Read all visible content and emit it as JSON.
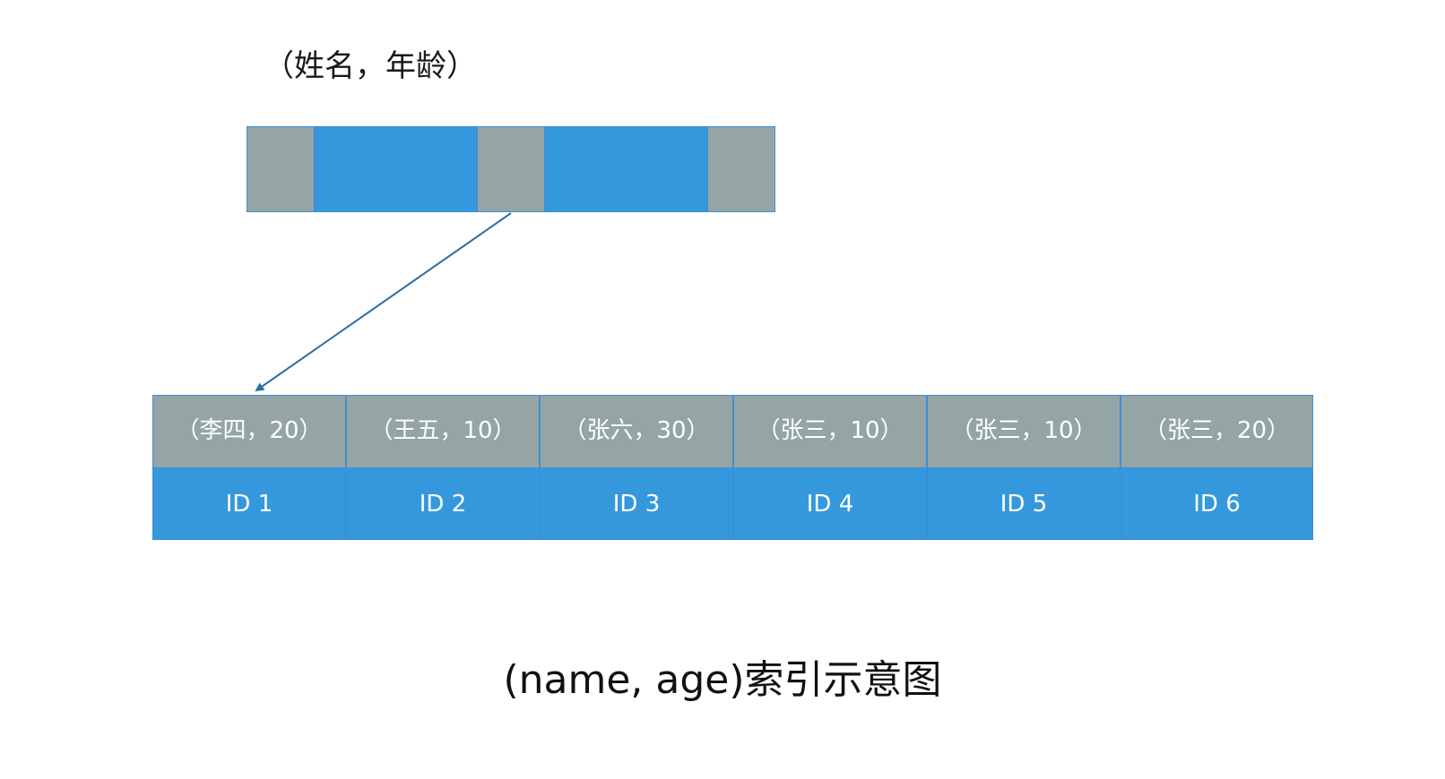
{
  "index_node": {
    "label": "（姓名，年龄）",
    "cells": [
      "pointer",
      "key",
      "pointer",
      "key",
      "pointer"
    ]
  },
  "leaf_entries": [
    {
      "key": "（李四，20）",
      "id": "ID 1"
    },
    {
      "key": "（王五，10）",
      "id": "ID 2"
    },
    {
      "key": "（张六，30）",
      "id": "ID 3"
    },
    {
      "key": "（张三，10）",
      "id": "ID 4"
    },
    {
      "key": "（张三，10）",
      "id": "ID 5"
    },
    {
      "key": "（张三，20）",
      "id": "ID 6"
    }
  ],
  "caption": "(name, age)索引示意图",
  "colors": {
    "pointer_cell": "#95a5a6",
    "key_cell": "#3598dc",
    "arrow": "#2a6fa8",
    "border": "#3b8fd6"
  }
}
